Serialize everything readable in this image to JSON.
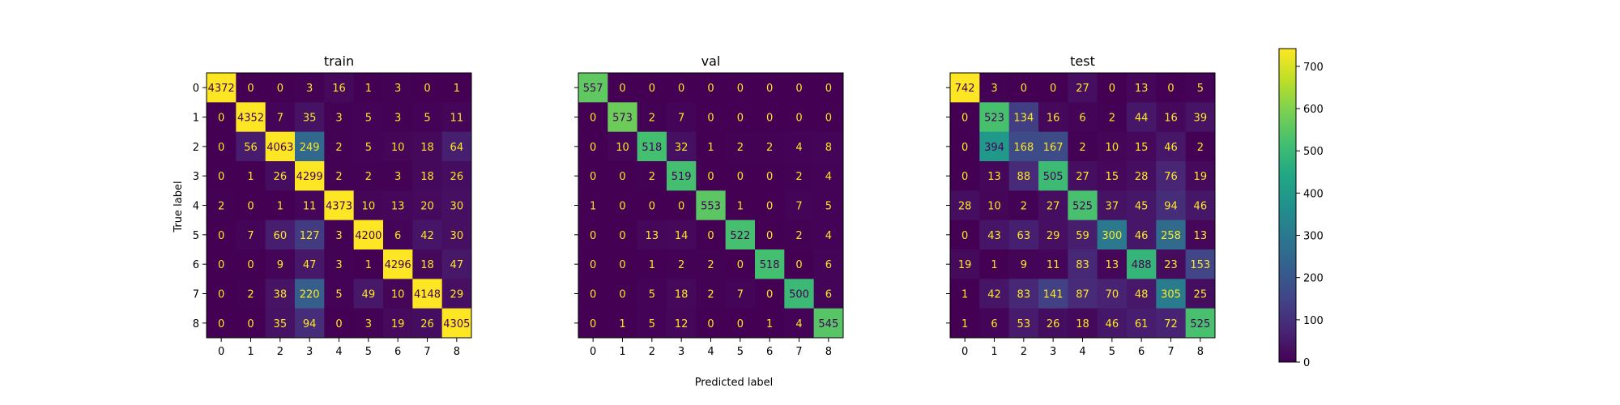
{
  "figure": {
    "xlabel": "Predicted label",
    "ylabel": "True label"
  },
  "chart_data": {
    "type": "heatmap",
    "categories": [
      "0",
      "1",
      "2",
      "3",
      "4",
      "5",
      "6",
      "7",
      "8"
    ],
    "colormap": "viridis",
    "color_range": [
      0,
      742
    ],
    "text_colors": {
      "low": "#fde725",
      "high": "#440154"
    },
    "colorbar": {
      "ticks": [
        0,
        100,
        200,
        300,
        400,
        500,
        600,
        700
      ]
    },
    "matrices": [
      {
        "title": "train",
        "values": [
          [
            4372,
            0,
            0,
            3,
            16,
            1,
            3,
            0,
            1
          ],
          [
            0,
            4352,
            7,
            35,
            3,
            5,
            3,
            5,
            11
          ],
          [
            0,
            56,
            4063,
            249,
            2,
            5,
            10,
            18,
            64
          ],
          [
            0,
            1,
            26,
            4299,
            2,
            2,
            3,
            18,
            26
          ],
          [
            2,
            0,
            1,
            11,
            4373,
            10,
            13,
            20,
            30
          ],
          [
            0,
            7,
            60,
            127,
            3,
            4200,
            6,
            42,
            30
          ],
          [
            0,
            0,
            9,
            47,
            3,
            1,
            4296,
            18,
            47
          ],
          [
            0,
            2,
            38,
            220,
            5,
            49,
            10,
            4148,
            29
          ],
          [
            0,
            0,
            35,
            94,
            0,
            3,
            19,
            26,
            4305
          ]
        ]
      },
      {
        "title": "val",
        "values": [
          [
            557,
            0,
            0,
            0,
            0,
            0,
            0,
            0,
            0
          ],
          [
            0,
            573,
            2,
            7,
            0,
            0,
            0,
            0,
            0
          ],
          [
            0,
            10,
            518,
            32,
            1,
            2,
            2,
            4,
            8
          ],
          [
            0,
            0,
            2,
            519,
            0,
            0,
            0,
            2,
            4
          ],
          [
            1,
            0,
            0,
            0,
            553,
            1,
            0,
            7,
            5
          ],
          [
            0,
            0,
            13,
            14,
            0,
            522,
            0,
            2,
            4
          ],
          [
            0,
            0,
            1,
            2,
            2,
            0,
            518,
            0,
            6
          ],
          [
            0,
            0,
            5,
            18,
            2,
            7,
            0,
            500,
            6
          ],
          [
            0,
            1,
            5,
            12,
            0,
            0,
            1,
            4,
            545
          ]
        ]
      },
      {
        "title": "test",
        "values": [
          [
            742,
            3,
            0,
            0,
            27,
            0,
            13,
            0,
            5
          ],
          [
            0,
            523,
            134,
            16,
            6,
            2,
            44,
            16,
            39
          ],
          [
            0,
            394,
            168,
            167,
            2,
            10,
            15,
            46,
            2
          ],
          [
            0,
            13,
            88,
            505,
            27,
            15,
            28,
            76,
            19
          ],
          [
            28,
            10,
            2,
            27,
            525,
            37,
            45,
            94,
            46
          ],
          [
            0,
            43,
            63,
            29,
            59,
            300,
            46,
            258,
            13
          ],
          [
            19,
            1,
            9,
            11,
            83,
            13,
            488,
            23,
            153
          ],
          [
            1,
            42,
            83,
            141,
            87,
            70,
            48,
            305,
            25
          ],
          [
            1,
            6,
            53,
            26,
            18,
            46,
            61,
            72,
            525
          ]
        ]
      }
    ]
  }
}
